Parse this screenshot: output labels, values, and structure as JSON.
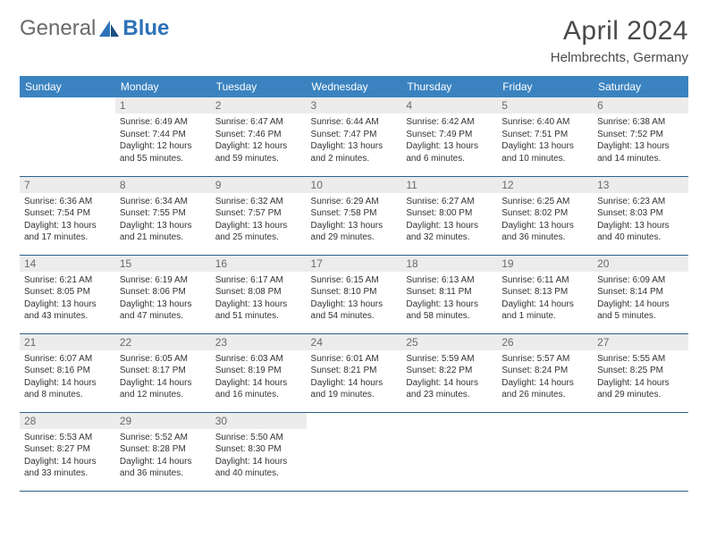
{
  "brand": {
    "part1": "General",
    "part2": "Blue"
  },
  "title": "April 2024",
  "location": "Helmbrechts, Germany",
  "colors": {
    "header_bg": "#3b83c0",
    "header_text": "#ffffff",
    "daynum_bg": "#ececec",
    "daynum_text": "#6a6a6a",
    "cell_border": "#2f5f86",
    "body_text": "#333333",
    "title_text": "#4a4a4a",
    "logo_gray": "#6a6a6a",
    "logo_blue": "#2d72b8"
  },
  "dow": [
    "Sunday",
    "Monday",
    "Tuesday",
    "Wednesday",
    "Thursday",
    "Friday",
    "Saturday"
  ],
  "weeks": [
    [
      {
        "n": "",
        "sr": "",
        "ss": "",
        "dl": ""
      },
      {
        "n": "1",
        "sr": "Sunrise: 6:49 AM",
        "ss": "Sunset: 7:44 PM",
        "dl": "Daylight: 12 hours and 55 minutes."
      },
      {
        "n": "2",
        "sr": "Sunrise: 6:47 AM",
        "ss": "Sunset: 7:46 PM",
        "dl": "Daylight: 12 hours and 59 minutes."
      },
      {
        "n": "3",
        "sr": "Sunrise: 6:44 AM",
        "ss": "Sunset: 7:47 PM",
        "dl": "Daylight: 13 hours and 2 minutes."
      },
      {
        "n": "4",
        "sr": "Sunrise: 6:42 AM",
        "ss": "Sunset: 7:49 PM",
        "dl": "Daylight: 13 hours and 6 minutes."
      },
      {
        "n": "5",
        "sr": "Sunrise: 6:40 AM",
        "ss": "Sunset: 7:51 PM",
        "dl": "Daylight: 13 hours and 10 minutes."
      },
      {
        "n": "6",
        "sr": "Sunrise: 6:38 AM",
        "ss": "Sunset: 7:52 PM",
        "dl": "Daylight: 13 hours and 14 minutes."
      }
    ],
    [
      {
        "n": "7",
        "sr": "Sunrise: 6:36 AM",
        "ss": "Sunset: 7:54 PM",
        "dl": "Daylight: 13 hours and 17 minutes."
      },
      {
        "n": "8",
        "sr": "Sunrise: 6:34 AM",
        "ss": "Sunset: 7:55 PM",
        "dl": "Daylight: 13 hours and 21 minutes."
      },
      {
        "n": "9",
        "sr": "Sunrise: 6:32 AM",
        "ss": "Sunset: 7:57 PM",
        "dl": "Daylight: 13 hours and 25 minutes."
      },
      {
        "n": "10",
        "sr": "Sunrise: 6:29 AM",
        "ss": "Sunset: 7:58 PM",
        "dl": "Daylight: 13 hours and 29 minutes."
      },
      {
        "n": "11",
        "sr": "Sunrise: 6:27 AM",
        "ss": "Sunset: 8:00 PM",
        "dl": "Daylight: 13 hours and 32 minutes."
      },
      {
        "n": "12",
        "sr": "Sunrise: 6:25 AM",
        "ss": "Sunset: 8:02 PM",
        "dl": "Daylight: 13 hours and 36 minutes."
      },
      {
        "n": "13",
        "sr": "Sunrise: 6:23 AM",
        "ss": "Sunset: 8:03 PM",
        "dl": "Daylight: 13 hours and 40 minutes."
      }
    ],
    [
      {
        "n": "14",
        "sr": "Sunrise: 6:21 AM",
        "ss": "Sunset: 8:05 PM",
        "dl": "Daylight: 13 hours and 43 minutes."
      },
      {
        "n": "15",
        "sr": "Sunrise: 6:19 AM",
        "ss": "Sunset: 8:06 PM",
        "dl": "Daylight: 13 hours and 47 minutes."
      },
      {
        "n": "16",
        "sr": "Sunrise: 6:17 AM",
        "ss": "Sunset: 8:08 PM",
        "dl": "Daylight: 13 hours and 51 minutes."
      },
      {
        "n": "17",
        "sr": "Sunrise: 6:15 AM",
        "ss": "Sunset: 8:10 PM",
        "dl": "Daylight: 13 hours and 54 minutes."
      },
      {
        "n": "18",
        "sr": "Sunrise: 6:13 AM",
        "ss": "Sunset: 8:11 PM",
        "dl": "Daylight: 13 hours and 58 minutes."
      },
      {
        "n": "19",
        "sr": "Sunrise: 6:11 AM",
        "ss": "Sunset: 8:13 PM",
        "dl": "Daylight: 14 hours and 1 minute."
      },
      {
        "n": "20",
        "sr": "Sunrise: 6:09 AM",
        "ss": "Sunset: 8:14 PM",
        "dl": "Daylight: 14 hours and 5 minutes."
      }
    ],
    [
      {
        "n": "21",
        "sr": "Sunrise: 6:07 AM",
        "ss": "Sunset: 8:16 PM",
        "dl": "Daylight: 14 hours and 8 minutes."
      },
      {
        "n": "22",
        "sr": "Sunrise: 6:05 AM",
        "ss": "Sunset: 8:17 PM",
        "dl": "Daylight: 14 hours and 12 minutes."
      },
      {
        "n": "23",
        "sr": "Sunrise: 6:03 AM",
        "ss": "Sunset: 8:19 PM",
        "dl": "Daylight: 14 hours and 16 minutes."
      },
      {
        "n": "24",
        "sr": "Sunrise: 6:01 AM",
        "ss": "Sunset: 8:21 PM",
        "dl": "Daylight: 14 hours and 19 minutes."
      },
      {
        "n": "25",
        "sr": "Sunrise: 5:59 AM",
        "ss": "Sunset: 8:22 PM",
        "dl": "Daylight: 14 hours and 23 minutes."
      },
      {
        "n": "26",
        "sr": "Sunrise: 5:57 AM",
        "ss": "Sunset: 8:24 PM",
        "dl": "Daylight: 14 hours and 26 minutes."
      },
      {
        "n": "27",
        "sr": "Sunrise: 5:55 AM",
        "ss": "Sunset: 8:25 PM",
        "dl": "Daylight: 14 hours and 29 minutes."
      }
    ],
    [
      {
        "n": "28",
        "sr": "Sunrise: 5:53 AM",
        "ss": "Sunset: 8:27 PM",
        "dl": "Daylight: 14 hours and 33 minutes."
      },
      {
        "n": "29",
        "sr": "Sunrise: 5:52 AM",
        "ss": "Sunset: 8:28 PM",
        "dl": "Daylight: 14 hours and 36 minutes."
      },
      {
        "n": "30",
        "sr": "Sunrise: 5:50 AM",
        "ss": "Sunset: 8:30 PM",
        "dl": "Daylight: 14 hours and 40 minutes."
      },
      {
        "n": "",
        "sr": "",
        "ss": "",
        "dl": ""
      },
      {
        "n": "",
        "sr": "",
        "ss": "",
        "dl": ""
      },
      {
        "n": "",
        "sr": "",
        "ss": "",
        "dl": ""
      },
      {
        "n": "",
        "sr": "",
        "ss": "",
        "dl": ""
      }
    ]
  ]
}
